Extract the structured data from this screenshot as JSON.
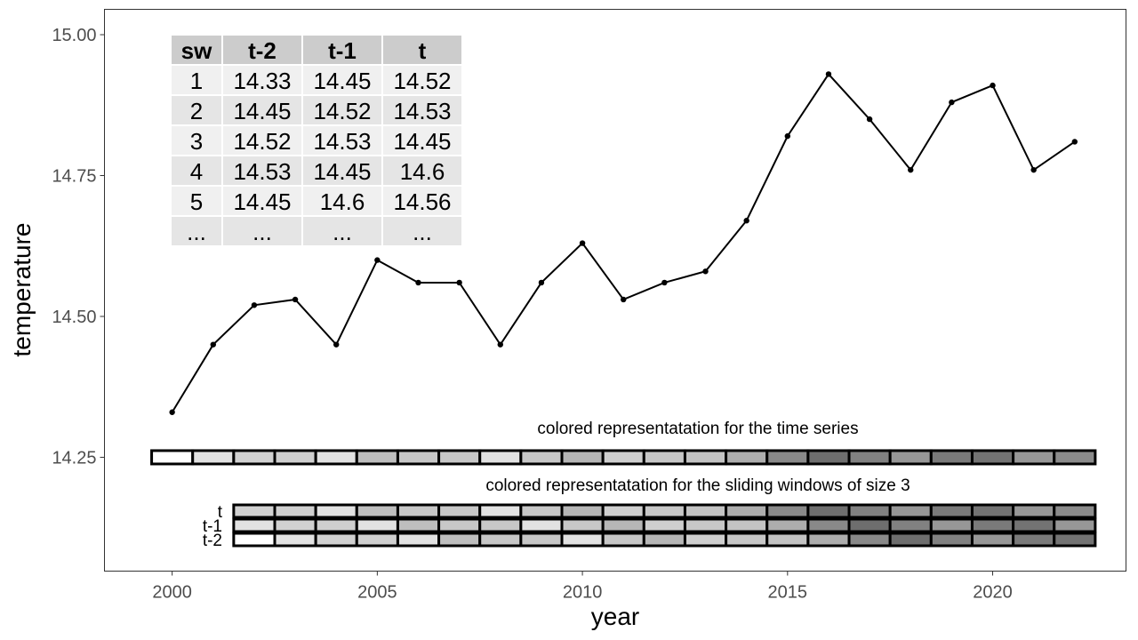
{
  "chart_data": {
    "type": "line",
    "xlabel": "year",
    "ylabel": "temperature",
    "xlim": [
      1998.35,
      2023.25
    ],
    "ylim": [
      14.048,
      15.045
    ],
    "x_ticks": [
      2000,
      2005,
      2010,
      2015,
      2020
    ],
    "y_ticks": [
      {
        "value": 14.25,
        "label": "14.25"
      },
      {
        "value": 14.5,
        "label": "14.50"
      },
      {
        "value": 14.75,
        "label": "14.75"
      },
      {
        "value": 15.0,
        "label": "15.00"
      }
    ],
    "grid": false,
    "series": [
      {
        "x": [
          2000,
          2001,
          2002,
          2003,
          2004,
          2005,
          2006,
          2007,
          2008,
          2009,
          2010,
          2011,
          2012,
          2013,
          2014,
          2015,
          2016,
          2017,
          2018,
          2019,
          2020,
          2021,
          2022
        ],
        "values": [
          14.33,
          14.45,
          14.52,
          14.53,
          14.45,
          14.6,
          14.56,
          14.56,
          14.45,
          14.56,
          14.63,
          14.53,
          14.56,
          14.58,
          14.67,
          14.82,
          14.93,
          14.85,
          14.76,
          14.88,
          14.91,
          14.76,
          14.81
        ]
      }
    ],
    "annotations": {
      "timeseries_label": "colored representatation for the time series",
      "windows_label": "colored representatation for the sliding windows of size 3",
      "window_row_labels": [
        "t",
        "t-1",
        "t-2"
      ]
    },
    "table": {
      "headers": [
        "sw",
        "t-2",
        "t-1",
        "t"
      ],
      "rows": [
        [
          "1",
          "14.33",
          "14.45",
          "14.52"
        ],
        [
          "2",
          "14.45",
          "14.52",
          "14.53"
        ],
        [
          "3",
          "14.52",
          "14.53",
          "14.45"
        ],
        [
          "4",
          "14.53",
          "14.45",
          "14.6"
        ],
        [
          "5",
          "14.45",
          "14.6",
          "14.56"
        ],
        [
          "...",
          "...",
          "...",
          "..."
        ]
      ]
    },
    "colors": {
      "line": "#000000",
      "panel_border": "#333333",
      "strip_light": "#ffffff",
      "strip_dark": "#6e6e6e",
      "table_header": "#cccccc",
      "table_row_odd": "#f0f0f0",
      "table_row_even": "#e5e5e5"
    }
  }
}
